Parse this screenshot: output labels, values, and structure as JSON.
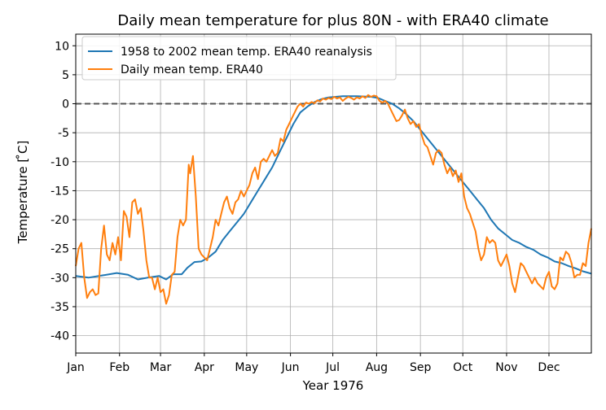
{
  "chart_data": {
    "type": "line",
    "title": "Daily mean temperature for plus 80N - with ERA40 climate",
    "xlabel": "Year 1976",
    "ylabel": "Temperature [$^\\circ$C]",
    "ylabel_display": "Temperature [ ̊C]",
    "xlim": [
      1,
      366
    ],
    "ylim": [
      -43,
      12
    ],
    "yticks": [
      10,
      5,
      0,
      -5,
      -10,
      -15,
      -20,
      -25,
      -30,
      -35,
      -40
    ],
    "xticks": [
      {
        "day": 1,
        "label": "Jan"
      },
      {
        "day": 32,
        "label": "Feb"
      },
      {
        "day": 61,
        "label": "Mar"
      },
      {
        "day": 92,
        "label": "Apr"
      },
      {
        "day": 122,
        "label": "May"
      },
      {
        "day": 153,
        "label": "Jun"
      },
      {
        "day": 183,
        "label": "Jul"
      },
      {
        "day": 214,
        "label": "Aug"
      },
      {
        "day": 245,
        "label": "Sep"
      },
      {
        "day": 275,
        "label": "Oct"
      },
      {
        "day": 306,
        "label": "Nov"
      },
      {
        "day": 336,
        "label": "Dec"
      }
    ],
    "grid": true,
    "zero_line": 0,
    "legend_position": "upper-left",
    "series": [
      {
        "name": "1958 to 2002 mean temp. ERA40 reanalysis",
        "color": "#1f77b4",
        "points": [
          [
            1,
            -29.7
          ],
          [
            10,
            -30
          ],
          [
            20,
            -29.6
          ],
          [
            30,
            -29.2
          ],
          [
            38,
            -29.5
          ],
          [
            45,
            -30.3
          ],
          [
            52,
            -30
          ],
          [
            60,
            -29.7
          ],
          [
            65,
            -30.3
          ],
          [
            70,
            -29.4
          ],
          [
            76,
            -29.4
          ],
          [
            80,
            -28.3
          ],
          [
            85,
            -27.3
          ],
          [
            90,
            -27.2
          ],
          [
            95,
            -26.5
          ],
          [
            100,
            -25.5
          ],
          [
            105,
            -23.5
          ],
          [
            110,
            -22
          ],
          [
            115,
            -20.5
          ],
          [
            120,
            -19
          ],
          [
            125,
            -17
          ],
          [
            130,
            -15
          ],
          [
            135,
            -13
          ],
          [
            140,
            -11
          ],
          [
            145,
            -8.5
          ],
          [
            150,
            -6
          ],
          [
            155,
            -3.5
          ],
          [
            160,
            -1.5
          ],
          [
            165,
            -0.5
          ],
          [
            170,
            0.3
          ],
          [
            175,
            0.8
          ],
          [
            180,
            1.1
          ],
          [
            185,
            1.2
          ],
          [
            190,
            1.3
          ],
          [
            200,
            1.3
          ],
          [
            210,
            1.2
          ],
          [
            215,
            1
          ],
          [
            220,
            0.5
          ],
          [
            225,
            0
          ],
          [
            230,
            -0.8
          ],
          [
            235,
            -1.8
          ],
          [
            240,
            -3
          ],
          [
            245,
            -4.5
          ],
          [
            250,
            -6
          ],
          [
            255,
            -7.5
          ],
          [
            260,
            -9
          ],
          [
            265,
            -10.5
          ],
          [
            270,
            -12
          ],
          [
            275,
            -13.5
          ],
          [
            280,
            -15
          ],
          [
            285,
            -16.5
          ],
          [
            290,
            -18
          ],
          [
            295,
            -20
          ],
          [
            300,
            -21.5
          ],
          [
            305,
            -22.5
          ],
          [
            310,
            -23.5
          ],
          [
            315,
            -24
          ],
          [
            320,
            -24.7
          ],
          [
            325,
            -25.2
          ],
          [
            330,
            -26
          ],
          [
            335,
            -26.5
          ],
          [
            340,
            -27.2
          ],
          [
            345,
            -27.5
          ],
          [
            350,
            -28
          ],
          [
            355,
            -28.4
          ],
          [
            360,
            -28.9
          ],
          [
            366,
            -29.3
          ]
        ]
      },
      {
        "name": "Daily mean temp. ERA40",
        "color": "#ff7f0e",
        "points": [
          [
            1,
            -28
          ],
          [
            3,
            -25
          ],
          [
            5,
            -24
          ],
          [
            7,
            -30
          ],
          [
            9,
            -33.5
          ],
          [
            11,
            -32.5
          ],
          [
            13,
            -32
          ],
          [
            15,
            -33
          ],
          [
            17,
            -32.7
          ],
          [
            19,
            -25
          ],
          [
            21,
            -21
          ],
          [
            23,
            -26
          ],
          [
            25,
            -27
          ],
          [
            27,
            -24
          ],
          [
            29,
            -26
          ],
          [
            31,
            -23
          ],
          [
            33,
            -27
          ],
          [
            35,
            -18.5
          ],
          [
            37,
            -19.5
          ],
          [
            39,
            -23
          ],
          [
            41,
            -17
          ],
          [
            43,
            -16.5
          ],
          [
            45,
            -19
          ],
          [
            47,
            -18
          ],
          [
            49,
            -22
          ],
          [
            51,
            -27
          ],
          [
            53,
            -30
          ],
          [
            55,
            -30
          ],
          [
            57,
            -32
          ],
          [
            59,
            -30
          ],
          [
            61,
            -32.5
          ],
          [
            63,
            -32
          ],
          [
            65,
            -34.5
          ],
          [
            67,
            -33
          ],
          [
            69,
            -29.5
          ],
          [
            71,
            -29
          ],
          [
            73,
            -23
          ],
          [
            75,
            -20
          ],
          [
            77,
            -21
          ],
          [
            79,
            -20
          ],
          [
            81,
            -10.5
          ],
          [
            82,
            -12
          ],
          [
            84,
            -9
          ],
          [
            86,
            -16
          ],
          [
            88,
            -25
          ],
          [
            90,
            -26
          ],
          [
            92,
            -26.5
          ],
          [
            94,
            -27
          ],
          [
            96,
            -25
          ],
          [
            98,
            -23
          ],
          [
            100,
            -20
          ],
          [
            102,
            -21
          ],
          [
            104,
            -19
          ],
          [
            106,
            -17
          ],
          [
            108,
            -16
          ],
          [
            110,
            -18
          ],
          [
            112,
            -19
          ],
          [
            114,
            -17
          ],
          [
            116,
            -16.5
          ],
          [
            118,
            -15
          ],
          [
            120,
            -16
          ],
          [
            122,
            -15
          ],
          [
            124,
            -14
          ],
          [
            126,
            -12
          ],
          [
            128,
            -11
          ],
          [
            130,
            -13
          ],
          [
            132,
            -10
          ],
          [
            134,
            -9.5
          ],
          [
            136,
            -10
          ],
          [
            138,
            -9
          ],
          [
            140,
            -8
          ],
          [
            142,
            -9
          ],
          [
            144,
            -8.5
          ],
          [
            146,
            -6
          ],
          [
            148,
            -6.5
          ],
          [
            150,
            -4.5
          ],
          [
            152,
            -3.5
          ],
          [
            154,
            -2.5
          ],
          [
            156,
            -1.5
          ],
          [
            158,
            -0.5
          ],
          [
            160,
            0
          ],
          [
            162,
            -0.5
          ],
          [
            164,
            0.2
          ],
          [
            166,
            0
          ],
          [
            168,
            0.3
          ],
          [
            170,
            0.1
          ],
          [
            172,
            0.6
          ],
          [
            174,
            0.4
          ],
          [
            176,
            0.9
          ],
          [
            178,
            0.7
          ],
          [
            180,
            1
          ],
          [
            182,
            0.8
          ],
          [
            184,
            1.2
          ],
          [
            186,
            0.9
          ],
          [
            188,
            1.1
          ],
          [
            190,
            0.5
          ],
          [
            192,
            0.9
          ],
          [
            194,
            1.2
          ],
          [
            196,
            1
          ],
          [
            198,
            0.7
          ],
          [
            200,
            1.1
          ],
          [
            202,
            0.9
          ],
          [
            204,
            1.3
          ],
          [
            206,
            1
          ],
          [
            208,
            1.5
          ],
          [
            210,
            1.2
          ],
          [
            212,
            1.4
          ],
          [
            214,
            1.3
          ],
          [
            216,
            0.5
          ],
          [
            218,
            0.2
          ],
          [
            220,
            0.5
          ],
          [
            222,
            0
          ],
          [
            224,
            -1
          ],
          [
            226,
            -2
          ],
          [
            228,
            -3
          ],
          [
            230,
            -2.8
          ],
          [
            232,
            -2
          ],
          [
            234,
            -1
          ],
          [
            236,
            -2.5
          ],
          [
            238,
            -3.5
          ],
          [
            240,
            -3
          ],
          [
            242,
            -4
          ],
          [
            244,
            -3.5
          ],
          [
            246,
            -5.5
          ],
          [
            248,
            -7
          ],
          [
            250,
            -7.5
          ],
          [
            252,
            -9
          ],
          [
            254,
            -10.5
          ],
          [
            256,
            -8.5
          ],
          [
            258,
            -8
          ],
          [
            260,
            -8.5
          ],
          [
            262,
            -10.5
          ],
          [
            264,
            -12
          ],
          [
            266,
            -11
          ],
          [
            268,
            -12.5
          ],
          [
            270,
            -11.5
          ],
          [
            272,
            -13.5
          ],
          [
            274,
            -12
          ],
          [
            276,
            -16
          ],
          [
            278,
            -18
          ],
          [
            280,
            -19
          ],
          [
            282,
            -20.5
          ],
          [
            284,
            -22
          ],
          [
            286,
            -25
          ],
          [
            288,
            -27
          ],
          [
            290,
            -26
          ],
          [
            292,
            -23
          ],
          [
            294,
            -24
          ],
          [
            296,
            -23.5
          ],
          [
            298,
            -24
          ],
          [
            300,
            -27
          ],
          [
            302,
            -28
          ],
          [
            304,
            -27
          ],
          [
            306,
            -26
          ],
          [
            308,
            -28
          ],
          [
            310,
            -31
          ],
          [
            312,
            -32.5
          ],
          [
            314,
            -30
          ],
          [
            316,
            -27.5
          ],
          [
            318,
            -28
          ],
          [
            320,
            -29
          ],
          [
            322,
            -30
          ],
          [
            324,
            -31
          ],
          [
            326,
            -30
          ],
          [
            328,
            -31
          ],
          [
            330,
            -31.5
          ],
          [
            332,
            -32
          ],
          [
            334,
            -30
          ],
          [
            336,
            -29
          ],
          [
            338,
            -31.5
          ],
          [
            340,
            -32
          ],
          [
            342,
            -31
          ],
          [
            344,
            -26.5
          ],
          [
            346,
            -27
          ],
          [
            348,
            -25.5
          ],
          [
            350,
            -26
          ],
          [
            352,
            -27.5
          ],
          [
            354,
            -30
          ],
          [
            356,
            -29.5
          ],
          [
            358,
            -29.5
          ],
          [
            360,
            -27.5
          ],
          [
            362,
            -28
          ],
          [
            364,
            -24
          ],
          [
            366,
            -21.5
          ]
        ]
      }
    ]
  }
}
